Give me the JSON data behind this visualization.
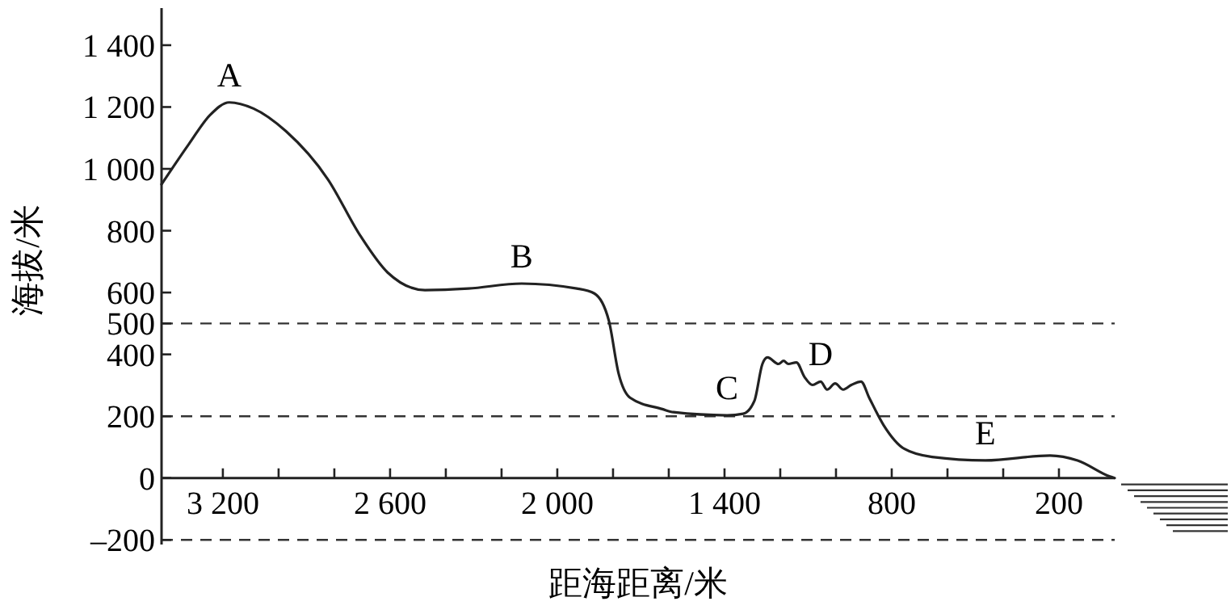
{
  "chart_data": {
    "type": "line",
    "xlabel": "距海距离/米",
    "ylabel": "海拔/米",
    "x": [
      3420,
      3322,
      3246,
      3177,
      3090,
      2974,
      2823,
      2707,
      2609,
      2475,
      2319,
      2128,
      1930,
      1867,
      1815,
      1780,
      1739,
      1623,
      1583,
      1391,
      1333,
      1293,
      1264,
      1246,
      1206,
      1188,
      1171,
      1142,
      1113,
      1084,
      1055,
      1032,
      1003,
      974,
      945,
      910,
      881,
      829,
      754,
      655,
      464,
      232,
      133,
      17,
      0
    ],
    "series": [
      {
        "color": "#222222",
        "values": [
          950,
          1080,
          1174,
          1215,
          1195,
          1122,
          966,
          784,
          665,
          608,
          613,
          629,
          613,
          597,
          509,
          338,
          260,
          223,
          213,
          203,
          208,
          249,
          369,
          390,
          369,
          379,
          369,
          374,
          327,
          301,
          312,
          286,
          306,
          286,
          301,
          312,
          260,
          171,
          94,
          68,
          57,
          73,
          57,
          5,
          0
        ]
      }
    ],
    "xlim": [
      3420,
      0
    ],
    "xticks": [
      {
        "value": 3200,
        "label": "3 200"
      },
      {
        "value": 3000,
        "label": null
      },
      {
        "value": 2800,
        "label": null
      },
      {
        "value": 2600,
        "label": "2 600"
      },
      {
        "value": 2400,
        "label": null
      },
      {
        "value": 2200,
        "label": null
      },
      {
        "value": 2000,
        "label": "2 000"
      },
      {
        "value": 1800,
        "label": null
      },
      {
        "value": 1600,
        "label": null
      },
      {
        "value": 1400,
        "label": "1 400"
      },
      {
        "value": 1200,
        "label": null
      },
      {
        "value": 1000,
        "label": null
      },
      {
        "value": 800,
        "label": "800"
      },
      {
        "value": 600,
        "label": null
      },
      {
        "value": 400,
        "label": null
      },
      {
        "value": 200,
        "label": "200"
      }
    ],
    "ylim": [
      -215,
      1520
    ],
    "yticks": [
      {
        "value": -200,
        "label": "–200"
      },
      0,
      200,
      400,
      500,
      600,
      800,
      {
        "value": 1000,
        "label": "1 000"
      },
      {
        "value": 1200,
        "label": "1 200"
      },
      {
        "value": 1400,
        "label": "1 400"
      }
    ],
    "ref_lines": [
      {
        "axis": "y",
        "value": 500,
        "line_style": "dashed"
      },
      {
        "axis": "y",
        "value": 200,
        "line_style": "dashed"
      },
      {
        "axis": "y",
        "value": -200,
        "line_style": "dashed"
      }
    ],
    "annotations": [
      {
        "text": "A",
        "x": 3177,
        "y": 1215
      },
      {
        "text": "B",
        "x": 2128,
        "y": 629
      },
      {
        "text": "C",
        "x": 1391,
        "y": 203
      },
      {
        "text": "D",
        "x": 1055,
        "y": 312
      },
      {
        "text": "E",
        "x": 464,
        "y": 57
      }
    ],
    "grid": false,
    "marker": "none",
    "line_style": "solid"
  }
}
